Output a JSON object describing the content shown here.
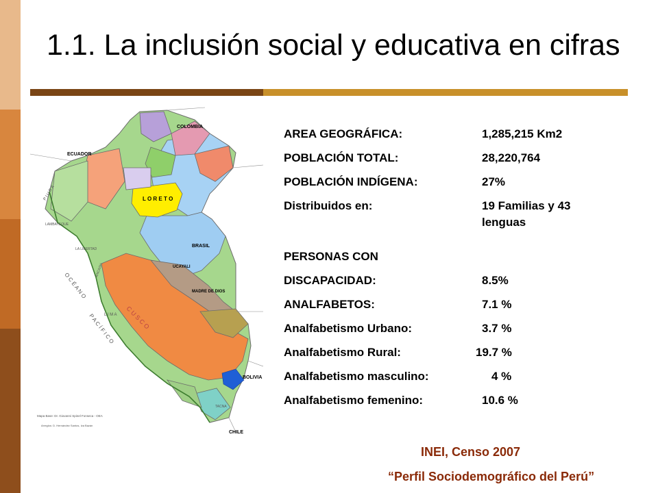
{
  "slide": {
    "title": "1.1. La inclusión social y educativa en cifras",
    "colors": {
      "strip": [
        "#e8b98b",
        "#d8863e",
        "#c06a25",
        "#8e4e1c"
      ],
      "rule_left": "#7a4515",
      "rule_right": "#c8902a",
      "source_text": "#8a2a08"
    }
  },
  "map": {
    "labels": {
      "colombia": "COLOMBIA",
      "ecuador": "ECUADOR",
      "brasil": "BRASIL",
      "bolivia": "BOLIVIA",
      "chile": "CHILE",
      "loreto": "L O R E T O",
      "ucayali": "UCAYALI",
      "madre_de_dios": "MADRE DE DIOS",
      "oceano": "O C É A N O",
      "pacifico": "P A C Í F I C O",
      "piura": "P I U R A",
      "lambayeque": "LAMBAYEQUE",
      "la_libertad": "LA LIBERTAD",
      "ancash": "ANCASH",
      "lima": "L I M A",
      "cusco": "C U S C O",
      "tacna": "TACNA",
      "credit_1": "Mapa Base: Dr. Giovanni Spinel Fonseca - OEA",
      "credit_2": "Arreglos: D. Hernández Santos, Iza Bazán"
    }
  },
  "stats": [
    {
      "label": "AREA GEOGRÁFICA:",
      "value": "1,285,215 Km2"
    },
    {
      "label": "POBLACIÓN  TOTAL:",
      "value": "28,220,764"
    },
    {
      "label": "POBLACIÓN  INDÍGENA:",
      "value": "27%"
    },
    {
      "label": "Distribuidos en:",
      "value": "19 Familias y 43 lenguas"
    },
    {
      "label": "PERSONAS CON",
      "value": ""
    },
    {
      "label": "DISCAPACIDAD:",
      "value": "8.5%"
    },
    {
      "label": "ANALFABETOS:",
      "value": "7.1 %"
    },
    {
      "label": "Analfabetismo Urbano:",
      "value": "3.7 %"
    },
    {
      "label": "Analfabetismo Rural:",
      "value": "19.7 %"
    },
    {
      "label": "Analfabetismo masculino:",
      "value": "4  %"
    },
    {
      "label": "Analfabetismo femenino:",
      "value": "10.6 %"
    }
  ],
  "source": {
    "line1": "INEI, Censo 2007",
    "line2": "“Perfil Sociodemográfico del Perú”"
  }
}
